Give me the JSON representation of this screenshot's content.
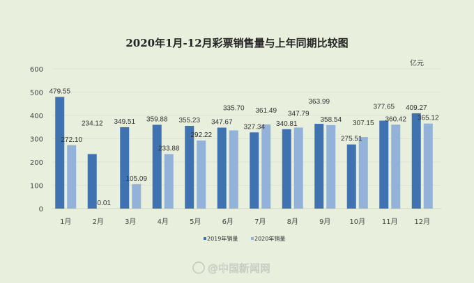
{
  "chart_data": {
    "type": "bar",
    "title": "2020年1月-12月彩票销售量与上年同期比较图",
    "unit_label": "亿元",
    "categories": [
      "1月",
      "2月",
      "3月",
      "4月",
      "5月",
      "6月",
      "7月",
      "8月",
      "9月",
      "10月",
      "11月",
      "12月"
    ],
    "series": [
      {
        "name": "2019年销量",
        "color": "#3f72b0",
        "values": [
          479.55,
          234.12,
          349.51,
          359.88,
          355.23,
          347.67,
          327.34,
          340.81,
          363.99,
          275.51,
          377.65,
          409.27
        ]
      },
      {
        "name": "2020年销量",
        "color": "#93b2d9",
        "values": [
          272.1,
          0.01,
          105.09,
          233.88,
          292.22,
          335.7,
          361.49,
          347.79,
          358.54,
          307.15,
          360.42,
          365.12
        ]
      }
    ],
    "ylim": [
      0,
      600
    ],
    "yticks": [
      0,
      100,
      200,
      300,
      400,
      500,
      600
    ],
    "grid": true,
    "legend": "bottom",
    "watermark": "@中国新闻网"
  }
}
